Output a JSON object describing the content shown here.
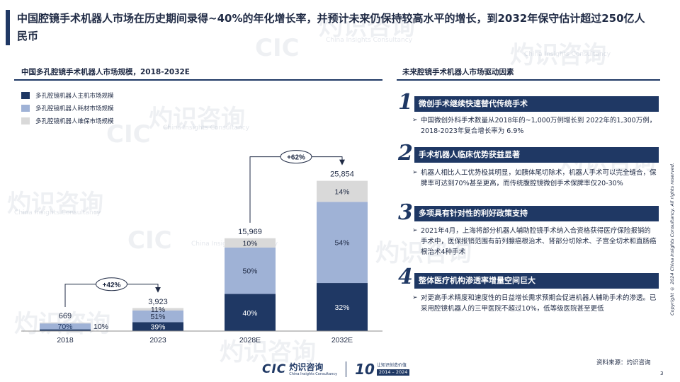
{
  "page_title": "中国腔镜手术机器人市场在历史期间录得~40%的年化增长率，并预计未来仍保持较高水平的增长，到2032年保守估计超过250亿人民币",
  "watermarks": {
    "cn": "灼识咨询",
    "en": "China Insights Consultancy",
    "cic": "CIC"
  },
  "left_section_title": "中国多孔腔镜手术机器人市场规模，2018-2032E",
  "right_section_title": "未来腔镜手术机器人市场驱动因素",
  "chart_data": {
    "type": "bar",
    "stacked": true,
    "title": "中国多孔腔镜手术机器人市场规模，2018-2032E",
    "categories": [
      "2018",
      "2023",
      "2028E",
      "2032E"
    ],
    "totals": [
      669,
      3923,
      15969,
      25854
    ],
    "total_labels": [
      "669",
      "3,923",
      "15,969",
      "25,854"
    ],
    "series": [
      {
        "name": "多孔腔镜机器人主机市场规模",
        "color": "#1f3864",
        "share": [
          20,
          39,
          40,
          32
        ],
        "labels": [
          "20%",
          "39%",
          "40%",
          "32%"
        ]
      },
      {
        "name": "多孔腔镜机器人耗材市场规模",
        "color": "#9fb2d6",
        "share": [
          70,
          51,
          50,
          54
        ],
        "labels": [
          "70%",
          "51%",
          "50%",
          "54%"
        ]
      },
      {
        "name": "多孔腔镜机器人维保市场规模",
        "color": "#d9d9d9",
        "share": [
          10,
          11,
          10,
          14
        ],
        "labels": [
          "10%",
          "11%",
          "10%",
          "14%"
        ]
      }
    ],
    "growth_annotations": [
      {
        "label": "+42%",
        "from": "2018",
        "to": "2023"
      },
      {
        "label": "+62%",
        "from": "2028E",
        "to": "2032E"
      }
    ],
    "legend_position": "top-left",
    "grid": false,
    "ylim": [
      0,
      28000
    ]
  },
  "drivers": [
    {
      "num": "1",
      "title": "微创手术继续快速替代传统手术",
      "text": "中国微创外科手术数量从2018年的~1,000万例增长到 2022年的1,300万例，2018-2023年复合增长率为 6.9%"
    },
    {
      "num": "2",
      "title": "手术机器人临床优势获益显著",
      "text": "机器人相比人工优势极其明显，如胰体尾切除术，机器人手术可以完全缝合，保脾率可达到70%甚至更高，而传统腹腔镜微创手术保脾率仅20-30%"
    },
    {
      "num": "3",
      "title": "多项具有针对性的利好政策支持",
      "text": "2021年4月，上海将部分机器人辅助腔镜手术纳入合资格获得医疗保险报销的手术中，医保报销范围有前列腺癌根治术、肾部分切除术、子宫全切术和直肠癌根治术4种手术"
    },
    {
      "num": "4",
      "title": "整体医疗机构渗透率增量空间巨大",
      "text": "对更高手术精度和速度性的日益增长需求预期会促进机器人辅助手术的渗透。已采用腔镜机器人的三甲医院不超过10%，低等级医院甚至更低"
    }
  ],
  "source": "资料来源：灼识咨询",
  "copyright": "Copyright © 2024 China Insights Consultancy. All rights reserved.",
  "page_number": "3",
  "footer": {
    "cic": "CIC",
    "brand_cn": "灼识咨询",
    "brand_en": "China Insights Consultancy",
    "anniversary_num": "10",
    "anniversary_cn": "让知识创造价值",
    "anniversary_years": "2014 – 2024"
  }
}
